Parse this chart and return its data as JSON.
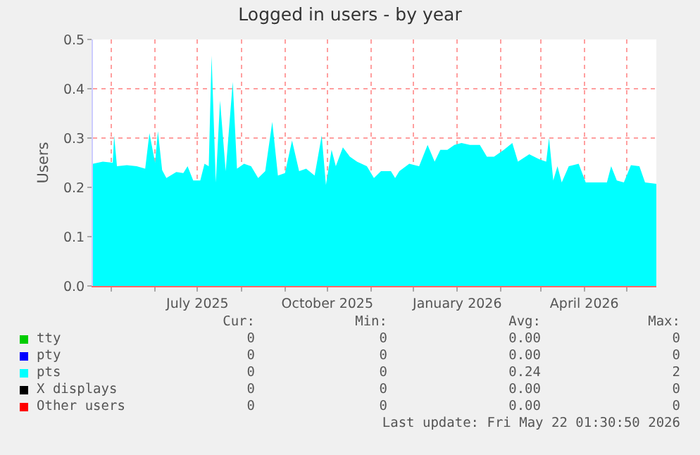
{
  "chart_data": {
    "type": "area",
    "title": "Logged in users - by year",
    "ylabel": "Users",
    "xlim": [
      "2025-04-18",
      "2026-05-22"
    ],
    "xticks": [
      {
        "value": "2025-05-01",
        "label": null
      },
      {
        "value": "2025-06-01",
        "label": null
      },
      {
        "value": "2025-07-01",
        "label": "July 2025"
      },
      {
        "value": "2025-08-01",
        "label": null
      },
      {
        "value": "2025-09-01",
        "label": null
      },
      {
        "value": "2025-10-01",
        "label": "October 2025"
      },
      {
        "value": "2025-11-01",
        "label": null
      },
      {
        "value": "2025-12-01",
        "label": null
      },
      {
        "value": "2026-01-01",
        "label": "January 2026"
      },
      {
        "value": "2026-02-01",
        "label": null
      },
      {
        "value": "2026-03-01",
        "label": null
      },
      {
        "value": "2026-04-01",
        "label": "April 2026"
      },
      {
        "value": "2026-05-01",
        "label": null
      }
    ],
    "ylim": [
      0,
      0.5
    ],
    "yticks": [
      {
        "value": 0,
        "label": "0.0"
      },
      0.1,
      0.2,
      0.3,
      0.4,
      0.5
    ],
    "grid": true,
    "legend": "bottom",
    "series": [
      {
        "name": "tty",
        "color": "#00cc00"
      },
      {
        "name": "pty",
        "color": "#0000ff"
      },
      {
        "name": "pts",
        "color": "#00ffff",
        "x": [
          "2025-04-18",
          "2025-04-25",
          "2025-05-02",
          "2025-05-03",
          "2025-05-05",
          "2025-05-12",
          "2025-05-19",
          "2025-05-25",
          "2025-05-28",
          "2025-06-01",
          "2025-06-03",
          "2025-06-06",
          "2025-06-09",
          "2025-06-16",
          "2025-06-21",
          "2025-06-24",
          "2025-06-28",
          "2025-07-03",
          "2025-07-06",
          "2025-07-09",
          "2025-07-11",
          "2025-07-14",
          "2025-07-17",
          "2025-07-21",
          "2025-07-26",
          "2025-07-29",
          "2025-08-03",
          "2025-08-08",
          "2025-08-13",
          "2025-08-18",
          "2025-08-23",
          "2025-08-27",
          "2025-09-01",
          "2025-09-06",
          "2025-09-11",
          "2025-09-16",
          "2025-09-22",
          "2025-09-27",
          "2025-09-30",
          "2025-10-04",
          "2025-10-07",
          "2025-10-12",
          "2025-10-17",
          "2025-10-22",
          "2025-10-29",
          "2025-11-03",
          "2025-11-08",
          "2025-11-15",
          "2025-11-18",
          "2025-11-21",
          "2025-11-28",
          "2025-12-05",
          "2025-12-11",
          "2025-12-16",
          "2025-12-20",
          "2025-12-25",
          "2025-12-30",
          "2026-01-04",
          "2026-01-10",
          "2026-01-17",
          "2026-01-22",
          "2026-01-27",
          "2026-02-03",
          "2026-02-09",
          "2026-02-13",
          "2026-02-21",
          "2026-02-28",
          "2026-03-05",
          "2026-03-07",
          "2026-03-10",
          "2026-03-13",
          "2026-03-16",
          "2026-03-21",
          "2026-03-28",
          "2026-04-02",
          "2026-04-10",
          "2026-04-17",
          "2026-04-20",
          "2026-04-24",
          "2026-04-29",
          "2026-05-04",
          "2026-05-10",
          "2026-05-14",
          "2026-05-22"
        ],
        "values": [
          0.248,
          0.252,
          0.25,
          0.305,
          0.243,
          0.245,
          0.243,
          0.238,
          0.31,
          0.25,
          0.314,
          0.235,
          0.219,
          0.231,
          0.229,
          0.243,
          0.214,
          0.214,
          0.248,
          0.243,
          0.467,
          0.21,
          0.376,
          0.233,
          0.414,
          0.238,
          0.248,
          0.243,
          0.219,
          0.233,
          0.333,
          0.224,
          0.229,
          0.295,
          0.233,
          0.238,
          0.224,
          0.305,
          0.205,
          0.276,
          0.243,
          0.281,
          0.262,
          0.252,
          0.243,
          0.219,
          0.233,
          0.233,
          0.219,
          0.233,
          0.248,
          0.243,
          0.286,
          0.252,
          0.276,
          0.276,
          0.286,
          0.29,
          0.286,
          0.286,
          0.262,
          0.262,
          0.276,
          0.29,
          0.252,
          0.267,
          0.257,
          0.252,
          0.3,
          0.214,
          0.243,
          0.21,
          0.243,
          0.248,
          0.21,
          0.21,
          0.21,
          0.243,
          0.214,
          0.21,
          0.245,
          0.243,
          0.21,
          0.207
        ]
      },
      {
        "name": "X displays",
        "color": "#000000"
      },
      {
        "name": "Other users",
        "color": "#ff0000"
      }
    ],
    "annotations": [
      "Cur:",
      "Min:",
      "Avg:",
      "Max:",
      "0",
      "0",
      "0.00",
      "0",
      "0",
      "0",
      "0.00",
      "0",
      "0",
      "0",
      "0.24",
      "2",
      "0",
      "0",
      "0.00",
      "0",
      "0",
      "0",
      "0.00",
      "0",
      "Last update: Fri May 22 01:30:50 2026"
    ]
  }
}
